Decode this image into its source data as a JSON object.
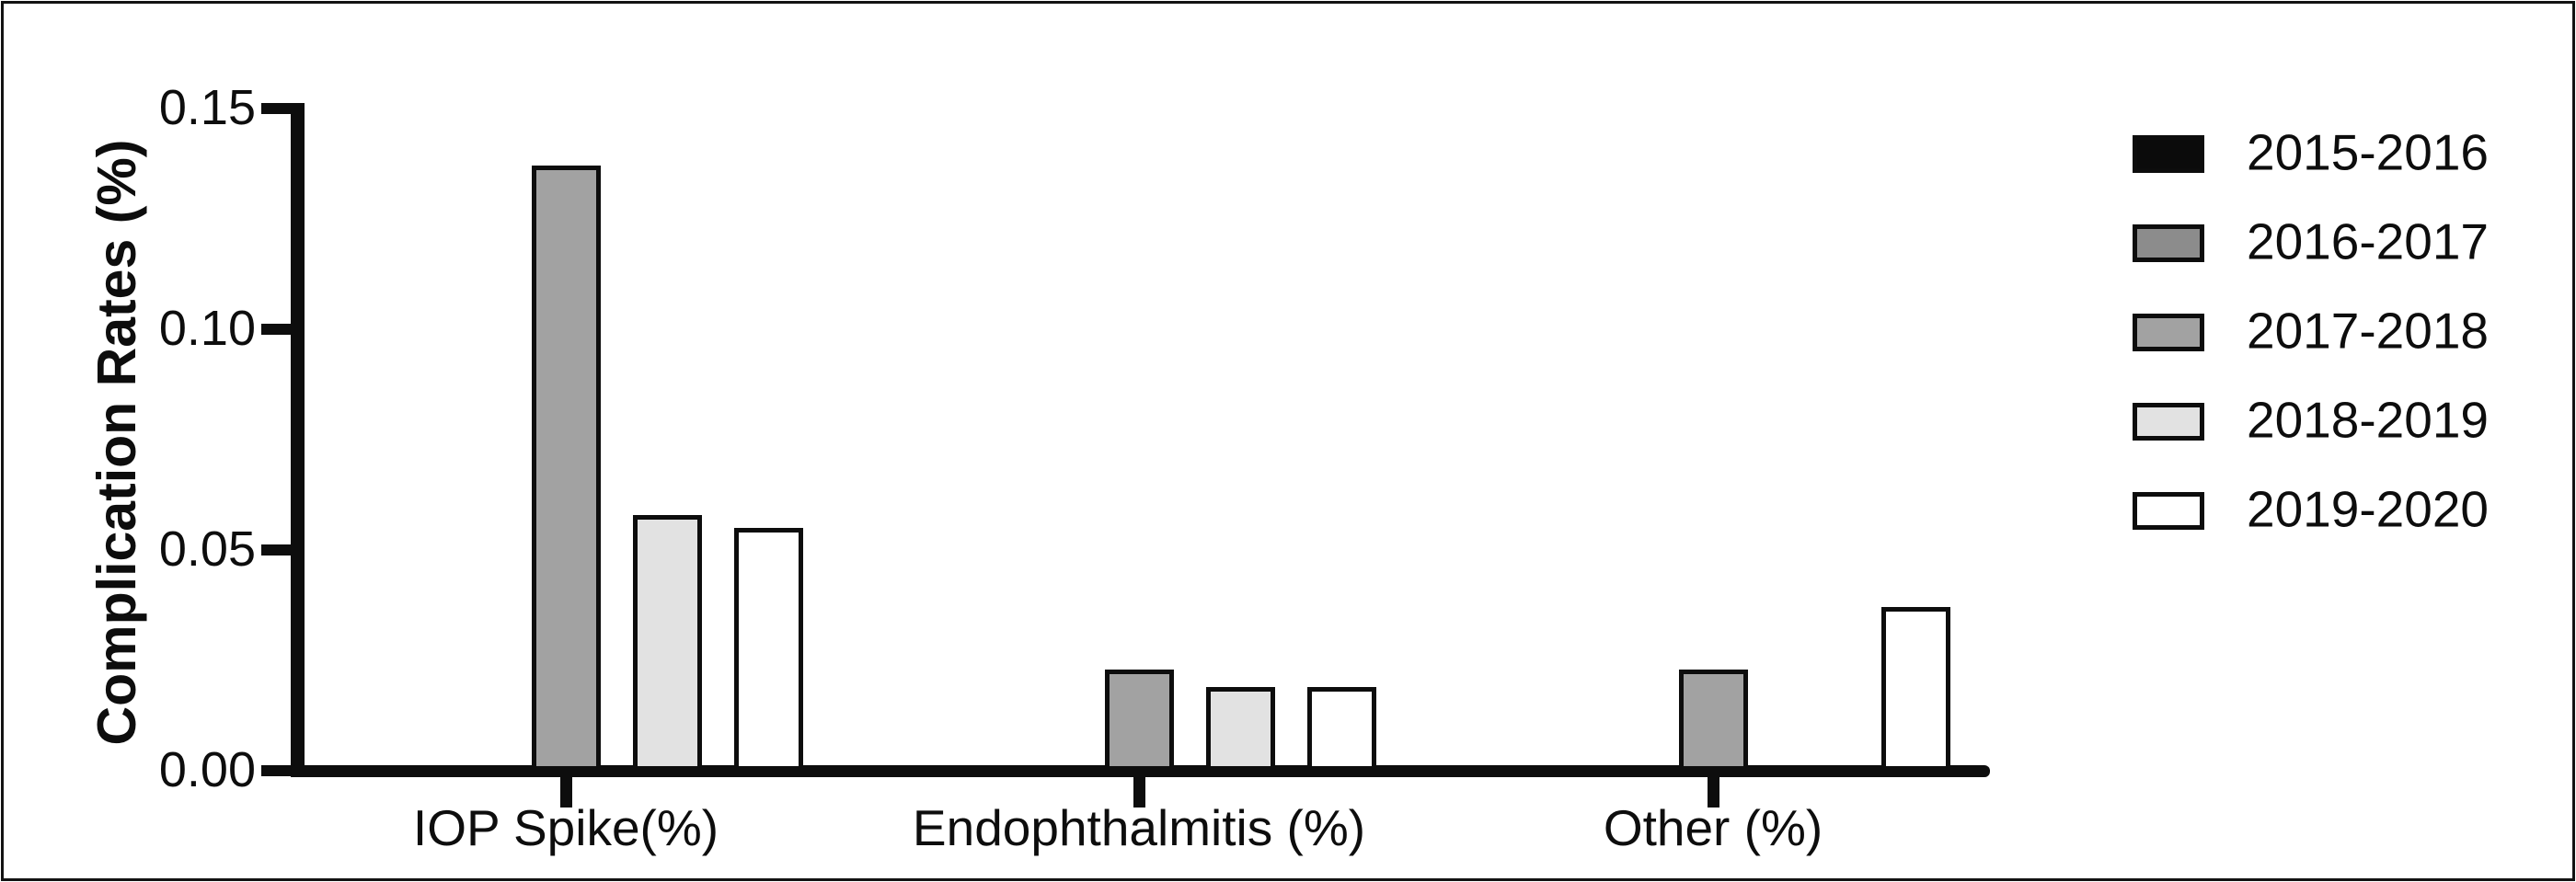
{
  "figure": {
    "background": "#ffffff",
    "frame_color": "#121212",
    "axis_color": "#0d0d0d"
  },
  "chart_data": {
    "type": "bar",
    "title": "",
    "xlabel": "",
    "ylabel": "Complication Rates (%)",
    "categories": [
      "IOP Spike(%)",
      "Endophthalmitis (%)",
      "Other (%)"
    ],
    "series": [
      {
        "name": "2015-2016",
        "color": "#0b0b0b",
        "values": [
          0,
          0,
          0
        ]
      },
      {
        "name": "2016-2017",
        "color": "#8c8c8c",
        "values": [
          0,
          0,
          0
        ]
      },
      {
        "name": "2017-2018",
        "color": "#a2a2a2",
        "values": [
          0.137,
          0.023,
          0.023
        ]
      },
      {
        "name": "2018-2019",
        "color": "#e2e2e2",
        "values": [
          0.058,
          0.019,
          0
        ]
      },
      {
        "name": "2019-2020",
        "color": "#ffffff",
        "values": [
          0.055,
          0.019,
          0.037
        ]
      }
    ],
    "ylim": [
      0,
      0.15
    ],
    "yticks": [
      {
        "value": 0.0,
        "label": "0.00"
      },
      {
        "value": 0.05,
        "label": "0.05"
      },
      {
        "value": 0.1,
        "label": "0.10"
      },
      {
        "value": 0.15,
        "label": "0.15"
      }
    ],
    "grid": false,
    "legend_position": "right"
  }
}
